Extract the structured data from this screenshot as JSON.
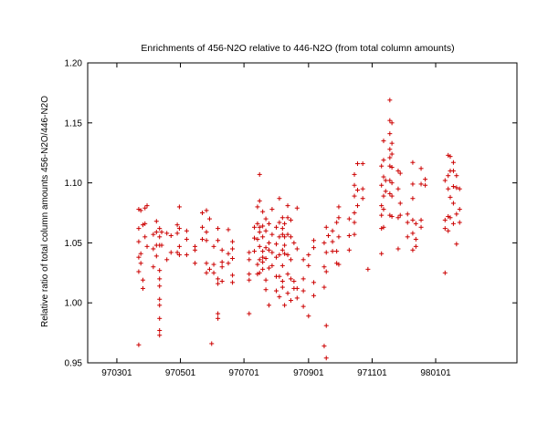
{
  "chart_data": {
    "type": "scatter",
    "title": "Enrichments of 456-N2O relative to 446-N2O (from total column amounts)",
    "xlabel": "",
    "ylabel": "Relative ratio of total column amounts 456-N2O/446-N2O",
    "xlim": [
      "1997-02-01",
      "1998-03-20"
    ],
    "ylim": [
      0.95,
      1.2
    ],
    "y_ticks": [
      "0.95",
      "1.00",
      "1.05",
      "1.10",
      "1.15",
      "1.20"
    ],
    "x_ticks": [
      "970301",
      "970501",
      "970701",
      "970901",
      "971101",
      "980101"
    ],
    "x_tick_dates": [
      "1997-03-01",
      "1997-05-01",
      "1997-07-01",
      "1997-09-01",
      "1997-11-01",
      "1998-01-01"
    ],
    "grid": false,
    "legend": "none",
    "marker": "plus",
    "color": "#cc0000",
    "points": [
      [
        "1997-03-22",
        1.078
      ],
      [
        "1997-03-22",
        1.062
      ],
      [
        "1997-03-22",
        1.051
      ],
      [
        "1997-03-22",
        1.038
      ],
      [
        "1997-03-22",
        1.026
      ],
      [
        "1997-03-22",
        0.965
      ],
      [
        "1997-03-24",
        1.077
      ],
      [
        "1997-03-24",
        1.041
      ],
      [
        "1997-03-24",
        1.033
      ],
      [
        "1997-03-26",
        1.065
      ],
      [
        "1997-03-26",
        1.019
      ],
      [
        "1997-03-26",
        1.012
      ],
      [
        "1997-03-28",
        1.079
      ],
      [
        "1997-03-28",
        1.066
      ],
      [
        "1997-03-28",
        1.055
      ],
      [
        "1997-03-30",
        1.081
      ],
      [
        "1997-03-30",
        1.047
      ],
      [
        "1997-04-05",
        1.057
      ],
      [
        "1997-04-05",
        1.045
      ],
      [
        "1997-04-05",
        1.03
      ],
      [
        "1997-04-08",
        1.068
      ],
      [
        "1997-04-08",
        1.059
      ],
      [
        "1997-04-08",
        1.048
      ],
      [
        "1997-04-08",
        1.039
      ],
      [
        "1997-04-11",
        1.062
      ],
      [
        "1997-04-11",
        1.055
      ],
      [
        "1997-04-11",
        1.048
      ],
      [
        "1997-04-11",
        1.027
      ],
      [
        "1997-04-11",
        1.02
      ],
      [
        "1997-04-11",
        1.014
      ],
      [
        "1997-04-11",
        1.003
      ],
      [
        "1997-04-11",
        0.998
      ],
      [
        "1997-04-11",
        0.987
      ],
      [
        "1997-04-11",
        0.977
      ],
      [
        "1997-04-11",
        0.973
      ],
      [
        "1997-04-13",
        1.059
      ],
      [
        "1997-04-13",
        1.048
      ],
      [
        "1997-04-18",
        1.058
      ],
      [
        "1997-04-18",
        1.036
      ],
      [
        "1997-04-22",
        1.056
      ],
      [
        "1997-04-22",
        1.042
      ],
      [
        "1997-04-28",
        1.065
      ],
      [
        "1997-04-28",
        1.058
      ],
      [
        "1997-04-28",
        1.042
      ],
      [
        "1997-04-30",
        1.08
      ],
      [
        "1997-04-30",
        1.062
      ],
      [
        "1997-04-30",
        1.047
      ],
      [
        "1997-04-30",
        1.04
      ],
      [
        "1997-05-07",
        1.06
      ],
      [
        "1997-05-07",
        1.053
      ],
      [
        "1997-05-07",
        1.04
      ],
      [
        "1997-05-15",
        1.047
      ],
      [
        "1997-05-15",
        1.044
      ],
      [
        "1997-05-15",
        1.033
      ],
      [
        "1997-05-22",
        1.075
      ],
      [
        "1997-05-22",
        1.063
      ],
      [
        "1997-05-22",
        1.053
      ],
      [
        "1997-05-26",
        1.077
      ],
      [
        "1997-05-26",
        1.059
      ],
      [
        "1997-05-26",
        1.052
      ],
      [
        "1997-05-26",
        1.033
      ],
      [
        "1997-05-26",
        1.025
      ],
      [
        "1997-05-29",
        1.07
      ],
      [
        "1997-05-29",
        1.028
      ],
      [
        "1997-05-31",
        0.966
      ],
      [
        "1997-06-02",
        1.047
      ],
      [
        "1997-06-02",
        1.032
      ],
      [
        "1997-06-02",
        1.025
      ],
      [
        "1997-06-06",
        1.062
      ],
      [
        "1997-06-06",
        1.052
      ],
      [
        "1997-06-06",
        1.02
      ],
      [
        "1997-06-06",
        1.016
      ],
      [
        "1997-06-06",
        0.991
      ],
      [
        "1997-06-06",
        0.987
      ],
      [
        "1997-06-10",
        1.044
      ],
      [
        "1997-06-10",
        1.034
      ],
      [
        "1997-06-10",
        1.03
      ],
      [
        "1997-06-10",
        1.018
      ],
      [
        "1997-06-16",
        1.061
      ],
      [
        "1997-06-16",
        1.041
      ],
      [
        "1997-06-16",
        1.033
      ],
      [
        "1997-06-20",
        1.051
      ],
      [
        "1997-06-20",
        1.045
      ],
      [
        "1997-06-20",
        1.037
      ],
      [
        "1997-06-20",
        1.023
      ],
      [
        "1997-06-20",
        1.017
      ],
      [
        "1997-07-06",
        1.042
      ],
      [
        "1997-07-06",
        1.036
      ],
      [
        "1997-07-06",
        1.024
      ],
      [
        "1997-07-06",
        1.019
      ],
      [
        "1997-07-06",
        0.991
      ],
      [
        "1997-07-11",
        1.063
      ],
      [
        "1997-07-11",
        1.054
      ],
      [
        "1997-07-11",
        1.043
      ],
      [
        "1997-07-14",
        1.08
      ],
      [
        "1997-07-14",
        1.066
      ],
      [
        "1997-07-14",
        1.053
      ],
      [
        "1997-07-14",
        1.032
      ],
      [
        "1997-07-14",
        1.024
      ],
      [
        "1997-07-16",
        1.107
      ],
      [
        "1997-07-16",
        1.085
      ],
      [
        "1997-07-16",
        1.063
      ],
      [
        "1997-07-16",
        1.059
      ],
      [
        "1997-07-16",
        1.047
      ],
      [
        "1997-07-16",
        1.036
      ],
      [
        "1997-07-16",
        1.025
      ],
      [
        "1997-07-19",
        1.076
      ],
      [
        "1997-07-19",
        1.064
      ],
      [
        "1997-07-19",
        1.055
      ],
      [
        "1997-07-19",
        1.043
      ],
      [
        "1997-07-19",
        1.038
      ],
      [
        "1997-07-19",
        1.034
      ],
      [
        "1997-07-19",
        1.028
      ],
      [
        "1997-07-22",
        1.07
      ],
      [
        "1997-07-22",
        1.06
      ],
      [
        "1997-07-22",
        1.046
      ],
      [
        "1997-07-22",
        1.037
      ],
      [
        "1997-07-22",
        1.019
      ],
      [
        "1997-07-22",
        1.011
      ],
      [
        "1997-07-25",
        1.066
      ],
      [
        "1997-07-25",
        1.05
      ],
      [
        "1997-07-25",
        1.044
      ],
      [
        "1997-07-25",
        1.029
      ],
      [
        "1997-07-25",
        0.998
      ],
      [
        "1997-07-28",
        1.078
      ],
      [
        "1997-07-28",
        1.057
      ],
      [
        "1997-07-28",
        1.042
      ],
      [
        "1997-07-28",
        1.031
      ],
      [
        "1997-08-01",
        1.063
      ],
      [
        "1997-08-01",
        1.049
      ],
      [
        "1997-08-01",
        1.038
      ],
      [
        "1997-08-01",
        1.022
      ],
      [
        "1997-08-01",
        1.01
      ],
      [
        "1997-08-04",
        1.087
      ],
      [
        "1997-08-04",
        1.067
      ],
      [
        "1997-08-04",
        1.055
      ],
      [
        "1997-08-04",
        1.04
      ],
      [
        "1997-08-04",
        1.022
      ],
      [
        "1997-08-04",
        1.005
      ],
      [
        "1997-08-07",
        1.071
      ],
      [
        "1997-08-07",
        1.062
      ],
      [
        "1997-08-07",
        1.057
      ],
      [
        "1997-08-07",
        1.044
      ],
      [
        "1997-08-07",
        1.031
      ],
      [
        "1997-08-07",
        1.018
      ],
      [
        "1997-08-07",
        1.013
      ],
      [
        "1997-08-09",
        1.066
      ],
      [
        "1997-08-09",
        1.055
      ],
      [
        "1997-08-09",
        1.048
      ],
      [
        "1997-08-09",
        1.041
      ],
      [
        "1997-08-09",
        0.998
      ],
      [
        "1997-08-12",
        1.081
      ],
      [
        "1997-08-12",
        1.071
      ],
      [
        "1997-08-12",
        1.057
      ],
      [
        "1997-08-12",
        1.04
      ],
      [
        "1997-08-12",
        1.024
      ],
      [
        "1997-08-12",
        1.008
      ],
      [
        "1997-08-15",
        1.069
      ],
      [
        "1997-08-15",
        1.055
      ],
      [
        "1997-08-15",
        1.036
      ],
      [
        "1997-08-15",
        1.02
      ],
      [
        "1997-08-15",
        1.002
      ],
      [
        "1997-08-18",
        1.05
      ],
      [
        "1997-08-18",
        1.018
      ],
      [
        "1997-08-18",
        1.012
      ],
      [
        "1997-08-21",
        1.079
      ],
      [
        "1997-08-21",
        1.045
      ],
      [
        "1997-08-21",
        1.012
      ],
      [
        "1997-08-21",
        1.004
      ],
      [
        "1997-08-27",
        1.036
      ],
      [
        "1997-08-27",
        1.02
      ],
      [
        "1997-08-27",
        1.01
      ],
      [
        "1997-08-27",
        0.997
      ],
      [
        "1997-09-01",
        1.04
      ],
      [
        "1997-09-01",
        1.031
      ],
      [
        "1997-09-01",
        0.989
      ],
      [
        "1997-09-06",
        1.052
      ],
      [
        "1997-09-06",
        1.046
      ],
      [
        "1997-09-06",
        1.017
      ],
      [
        "1997-09-06",
        1.006
      ],
      [
        "1997-09-16",
        1.05
      ],
      [
        "1997-09-16",
        1.03
      ],
      [
        "1997-09-16",
        1.013
      ],
      [
        "1997-09-16",
        0.964
      ],
      [
        "1997-09-18",
        1.063
      ],
      [
        "1997-09-18",
        1.042
      ],
      [
        "1997-09-18",
        1.026
      ],
      [
        "1997-09-18",
        0.981
      ],
      [
        "1997-09-18",
        0.954
      ],
      [
        "1997-09-20",
        1.056
      ],
      [
        "1997-09-24",
        1.06
      ],
      [
        "1997-09-24",
        1.051
      ],
      [
        "1997-09-24",
        1.043
      ],
      [
        "1997-09-28",
        1.067
      ],
      [
        "1997-09-28",
        1.043
      ],
      [
        "1997-09-28",
        1.033
      ],
      [
        "1997-09-30",
        1.08
      ],
      [
        "1997-09-30",
        1.071
      ],
      [
        "1997-09-30",
        1.055
      ],
      [
        "1997-09-30",
        1.032
      ],
      [
        "1997-10-10",
        1.07
      ],
      [
        "1997-10-10",
        1.056
      ],
      [
        "1997-10-10",
        1.044
      ],
      [
        "1997-10-15",
        1.107
      ],
      [
        "1997-10-15",
        1.098
      ],
      [
        "1997-10-15",
        1.089
      ],
      [
        "1997-10-15",
        1.075
      ],
      [
        "1997-10-15",
        1.067
      ],
      [
        "1997-10-15",
        1.057
      ],
      [
        "1997-10-18",
        1.116
      ],
      [
        "1997-10-18",
        1.094
      ],
      [
        "1997-10-18",
        1.081
      ],
      [
        "1997-10-23",
        1.116
      ],
      [
        "1997-10-23",
        1.095
      ],
      [
        "1997-10-23",
        1.087
      ],
      [
        "1997-10-28",
        1.028
      ],
      [
        "1997-11-10",
        1.114
      ],
      [
        "1997-11-10",
        1.098
      ],
      [
        "1997-11-10",
        1.081
      ],
      [
        "1997-11-10",
        1.073
      ],
      [
        "1997-11-10",
        1.062
      ],
      [
        "1997-11-10",
        1.041
      ],
      [
        "1997-11-12",
        1.135
      ],
      [
        "1997-11-12",
        1.119
      ],
      [
        "1997-11-12",
        1.105
      ],
      [
        "1997-11-12",
        1.089
      ],
      [
        "1997-11-12",
        1.078
      ],
      [
        "1997-11-12",
        1.063
      ],
      [
        "1997-11-14",
        1.102
      ],
      [
        "1997-11-14",
        1.093
      ],
      [
        "1997-11-18",
        1.169
      ],
      [
        "1997-11-18",
        1.152
      ],
      [
        "1997-11-18",
        1.141
      ],
      [
        "1997-11-18",
        1.128
      ],
      [
        "1997-11-18",
        1.121
      ],
      [
        "1997-11-18",
        1.114
      ],
      [
        "1997-11-18",
        1.102
      ],
      [
        "1997-11-18",
        1.091
      ],
      [
        "1997-11-18",
        1.073
      ],
      [
        "1997-11-20",
        1.15
      ],
      [
        "1997-11-20",
        1.133
      ],
      [
        "1997-11-20",
        1.124
      ],
      [
        "1997-11-20",
        1.113
      ],
      [
        "1997-11-20",
        1.1
      ],
      [
        "1997-11-20",
        1.089
      ],
      [
        "1997-11-20",
        1.072
      ],
      [
        "1997-11-26",
        1.11
      ],
      [
        "1997-11-26",
        1.095
      ],
      [
        "1997-11-26",
        1.071
      ],
      [
        "1997-11-26",
        1.045
      ],
      [
        "1997-11-28",
        1.108
      ],
      [
        "1997-11-28",
        1.083
      ],
      [
        "1997-11-28",
        1.073
      ],
      [
        "1997-12-05",
        1.074
      ],
      [
        "1997-12-05",
        1.067
      ],
      [
        "1997-12-05",
        1.055
      ],
      [
        "1997-12-10",
        1.117
      ],
      [
        "1997-12-10",
        1.099
      ],
      [
        "1997-12-10",
        1.087
      ],
      [
        "1997-12-10",
        1.069
      ],
      [
        "1997-12-10",
        1.058
      ],
      [
        "1997-12-10",
        1.044
      ],
      [
        "1997-12-13",
        1.066
      ],
      [
        "1997-12-13",
        1.053
      ],
      [
        "1997-12-13",
        1.047
      ],
      [
        "1997-12-18",
        1.112
      ],
      [
        "1997-12-18",
        1.099
      ],
      [
        "1997-12-18",
        1.069
      ],
      [
        "1997-12-18",
        1.063
      ],
      [
        "1997-12-22",
        1.103
      ],
      [
        "1997-12-22",
        1.098
      ],
      [
        "1998-01-10",
        1.102
      ],
      [
        "1998-01-10",
        1.069
      ],
      [
        "1998-01-10",
        1.062
      ],
      [
        "1998-01-10",
        1.025
      ],
      [
        "1998-01-13",
        1.123
      ],
      [
        "1998-01-13",
        1.106
      ],
      [
        "1998-01-13",
        1.095
      ],
      [
        "1998-01-13",
        1.072
      ],
      [
        "1998-01-13",
        1.06
      ],
      [
        "1998-01-15",
        1.122
      ],
      [
        "1998-01-15",
        1.11
      ],
      [
        "1998-01-15",
        1.088
      ],
      [
        "1998-01-15",
        1.071
      ],
      [
        "1998-01-18",
        1.117
      ],
      [
        "1998-01-18",
        1.11
      ],
      [
        "1998-01-18",
        1.097
      ],
      [
        "1998-01-18",
        1.083
      ],
      [
        "1998-01-18",
        1.066
      ],
      [
        "1998-01-21",
        1.106
      ],
      [
        "1998-01-21",
        1.096
      ],
      [
        "1998-01-21",
        1.074
      ],
      [
        "1998-01-21",
        1.049
      ],
      [
        "1998-01-24",
        1.095
      ],
      [
        "1998-01-24",
        1.078
      ],
      [
        "1998-01-24",
        1.067
      ]
    ]
  }
}
